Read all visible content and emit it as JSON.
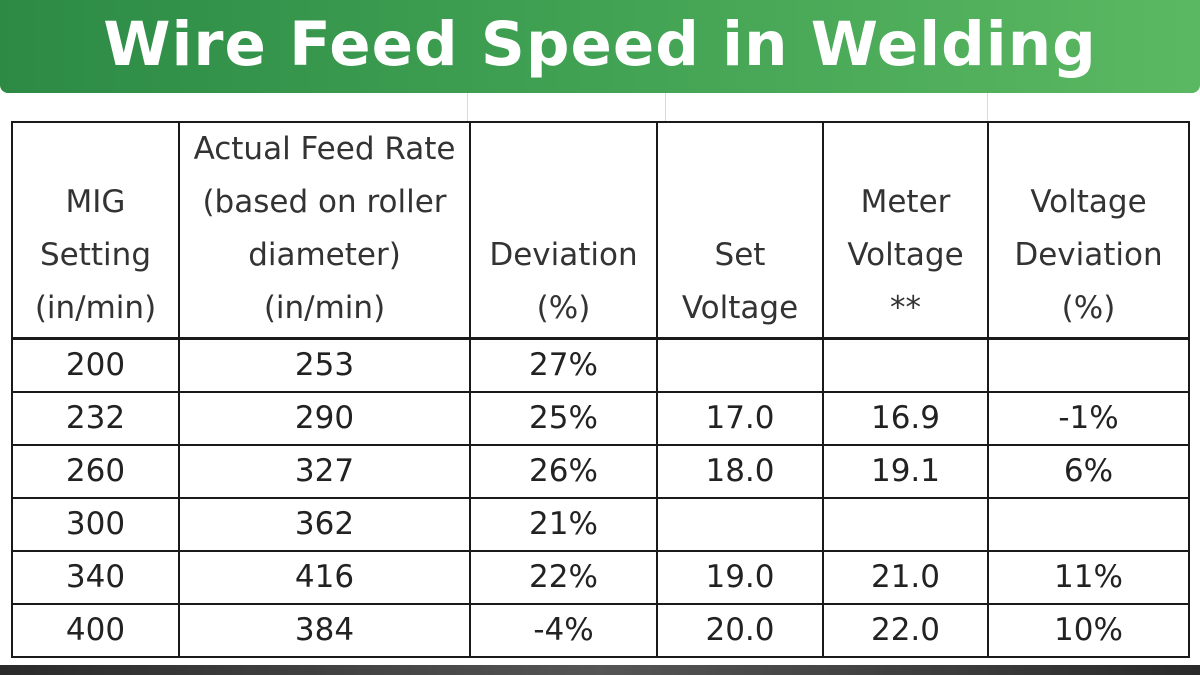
{
  "banner": {
    "title": "Wire Feed Speed in Welding"
  },
  "table": {
    "headers": [
      [
        "MIG",
        "Setting",
        "(in/min)"
      ],
      [
        "Actual Feed Rate",
        "(based on roller",
        "diameter)",
        "(in/min)"
      ],
      [
        "Deviation",
        "(%)"
      ],
      [
        "Set",
        "Voltage"
      ],
      [
        "Meter",
        "Voltage",
        "**"
      ],
      [
        "Voltage",
        "Deviation",
        "(%)"
      ]
    ],
    "rows": [
      [
        "200",
        "253",
        "27%",
        "",
        "",
        ""
      ],
      [
        "232",
        "290",
        "25%",
        "17.0",
        "16.9",
        "-1%"
      ],
      [
        "260",
        "327",
        "26%",
        "18.0",
        "19.1",
        "6%"
      ],
      [
        "300",
        "362",
        "21%",
        "",
        "",
        ""
      ],
      [
        "340",
        "416",
        "22%",
        "19.0",
        "21.0",
        "11%"
      ],
      [
        "400",
        "384",
        "-4%",
        "20.0",
        "22.0",
        "10%"
      ]
    ]
  },
  "colors": {
    "banner_start": "#2c8a45",
    "banner_end": "#5bb862",
    "banner_text": "#ffffff",
    "border": "#1a1a1a"
  }
}
